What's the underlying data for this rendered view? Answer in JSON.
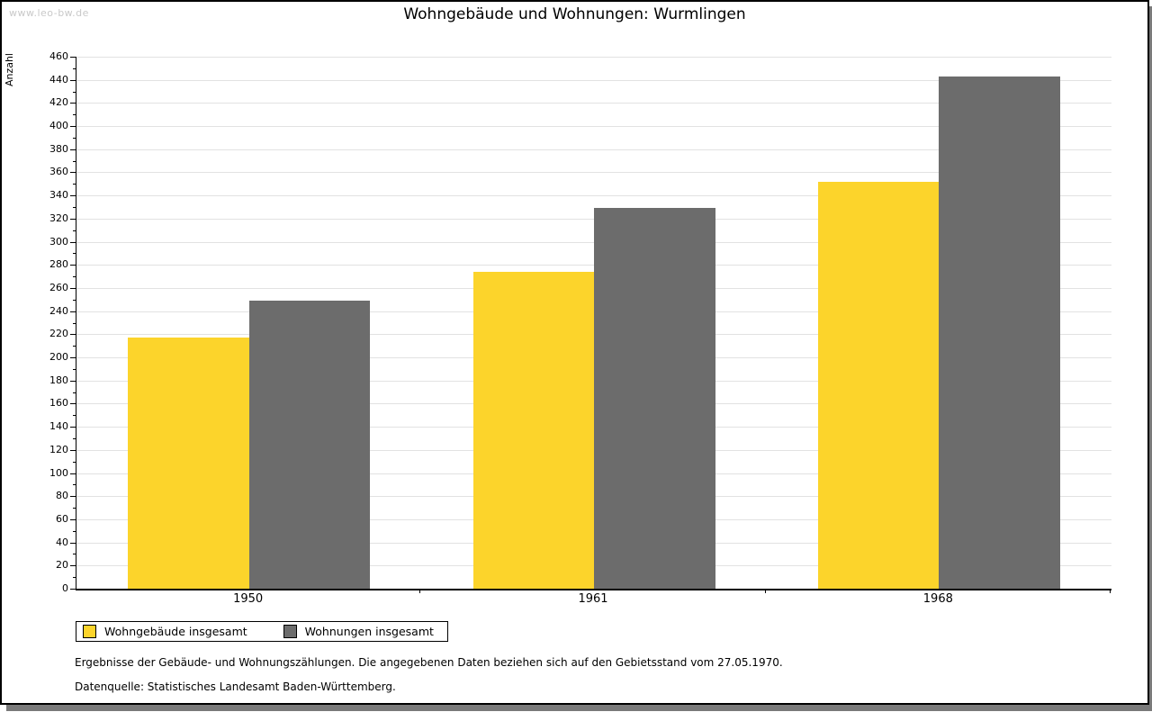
{
  "watermark": "www.leo-bw.de",
  "header": {
    "title": "Wohngebäude und Wohnungen: Wurmlingen"
  },
  "colors": {
    "building_bar": "#fcd42b",
    "dwelling_bar": "#6c6c6c",
    "gridline": "#e2e2e2",
    "frame_shadow": "#7a7a7a",
    "watermark_text": "#c9c9c9"
  },
  "chart_data": {
    "type": "bar",
    "title": "Wohngebäude und Wohnungen: Wurmlingen",
    "categories": [
      "1950",
      "1961",
      "1968"
    ],
    "series": [
      {
        "name": "Wohngebäude insgesamt",
        "color": "#fcd42b",
        "values": [
          217,
          274,
          352
        ]
      },
      {
        "name": "Wohnungen insgesamt",
        "color": "#6c6c6c",
        "values": [
          249,
          329,
          443
        ]
      }
    ],
    "xlabel": "",
    "ylabel": "Anzahl",
    "ylim": [
      0,
      460
    ],
    "ytick_step": 20,
    "yminor_step": 10,
    "grid": true,
    "legend_position": "bottom-left"
  },
  "legend": {
    "items": [
      {
        "label": "Wohngebäude insgesamt",
        "color": "#fcd42b"
      },
      {
        "label": "Wohnungen insgesamt",
        "color": "#6c6c6c"
      }
    ]
  },
  "footer": {
    "line1": "Ergebnisse der Gebäude- und Wohnungszählungen. Die angegebenen Daten beziehen sich auf den Gebietsstand vom 27.05.1970.",
    "line2": "Datenquelle: Statistisches Landesamt Baden-Württemberg."
  }
}
